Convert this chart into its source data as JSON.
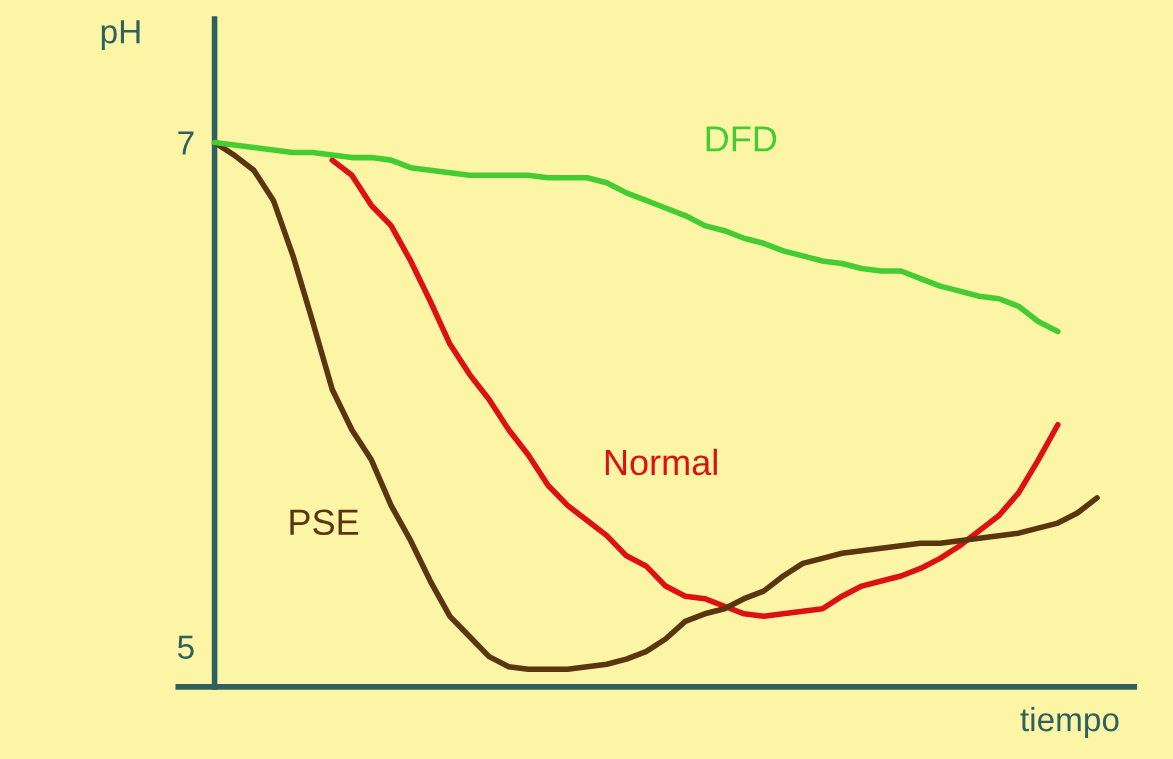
{
  "chart_data": {
    "type": "line",
    "xlabel": "tiempo",
    "ylabel": "pH",
    "categories": [
      null,
      null,
      null,
      null,
      null,
      null,
      null,
      null,
      null,
      null,
      null,
      null,
      null,
      null,
      null,
      null,
      null,
      null,
      null,
      null,
      null,
      null,
      null,
      null,
      null,
      null,
      null,
      null,
      null,
      null,
      null,
      null,
      null,
      null,
      null,
      null,
      null,
      null,
      null,
      null,
      null,
      null,
      null,
      null,
      null,
      null
    ],
    "ylim": [
      4.84,
      7.49
    ],
    "yticks": [
      5,
      7
    ],
    "grid": false,
    "legend": false,
    "marker": "none",
    "line_style": "solid",
    "series": [
      {
        "name": "DFD",
        "color": "#44cc33",
        "values": [
          7.0,
          6.99,
          6.98,
          6.97,
          6.96,
          6.96,
          6.95,
          6.94,
          6.94,
          6.93,
          6.9,
          6.89,
          6.88,
          6.87,
          6.87,
          6.87,
          6.87,
          6.86,
          6.86,
          6.86,
          6.84,
          6.8,
          6.77,
          6.74,
          6.71,
          6.67,
          6.65,
          6.62,
          6.6,
          6.57,
          6.55,
          6.53,
          6.52,
          6.5,
          6.49,
          6.49,
          6.46,
          6.43,
          6.41,
          6.39,
          6.38,
          6.35,
          6.29,
          6.25,
          null,
          null
        ]
      },
      {
        "name": "Normal",
        "color": "#dd1111",
        "values": [
          null,
          null,
          null,
          null,
          null,
          null,
          6.93,
          6.87,
          6.75,
          6.67,
          6.53,
          6.37,
          6.2,
          6.08,
          5.98,
          5.86,
          5.76,
          5.64,
          5.56,
          5.5,
          5.44,
          5.36,
          5.32,
          5.24,
          5.2,
          5.19,
          5.16,
          5.13,
          5.12,
          5.13,
          5.14,
          5.15,
          5.2,
          5.24,
          5.26,
          5.28,
          5.31,
          5.35,
          5.4,
          5.46,
          5.52,
          5.61,
          5.74,
          5.88,
          null,
          null
        ]
      },
      {
        "name": "PSE",
        "color": "#5a3510",
        "values": [
          7.0,
          6.95,
          6.89,
          6.77,
          6.55,
          6.29,
          6.02,
          5.86,
          5.74,
          5.56,
          5.42,
          5.26,
          5.12,
          5.04,
          4.96,
          4.92,
          4.91,
          4.91,
          4.91,
          4.92,
          4.93,
          4.95,
          4.98,
          5.03,
          5.1,
          5.13,
          5.15,
          5.19,
          5.22,
          5.28,
          5.33,
          5.35,
          5.37,
          5.38,
          5.39,
          5.4,
          5.41,
          5.41,
          5.42,
          5.43,
          5.44,
          5.45,
          5.47,
          5.49,
          5.53,
          5.59
        ]
      }
    ]
  }
}
